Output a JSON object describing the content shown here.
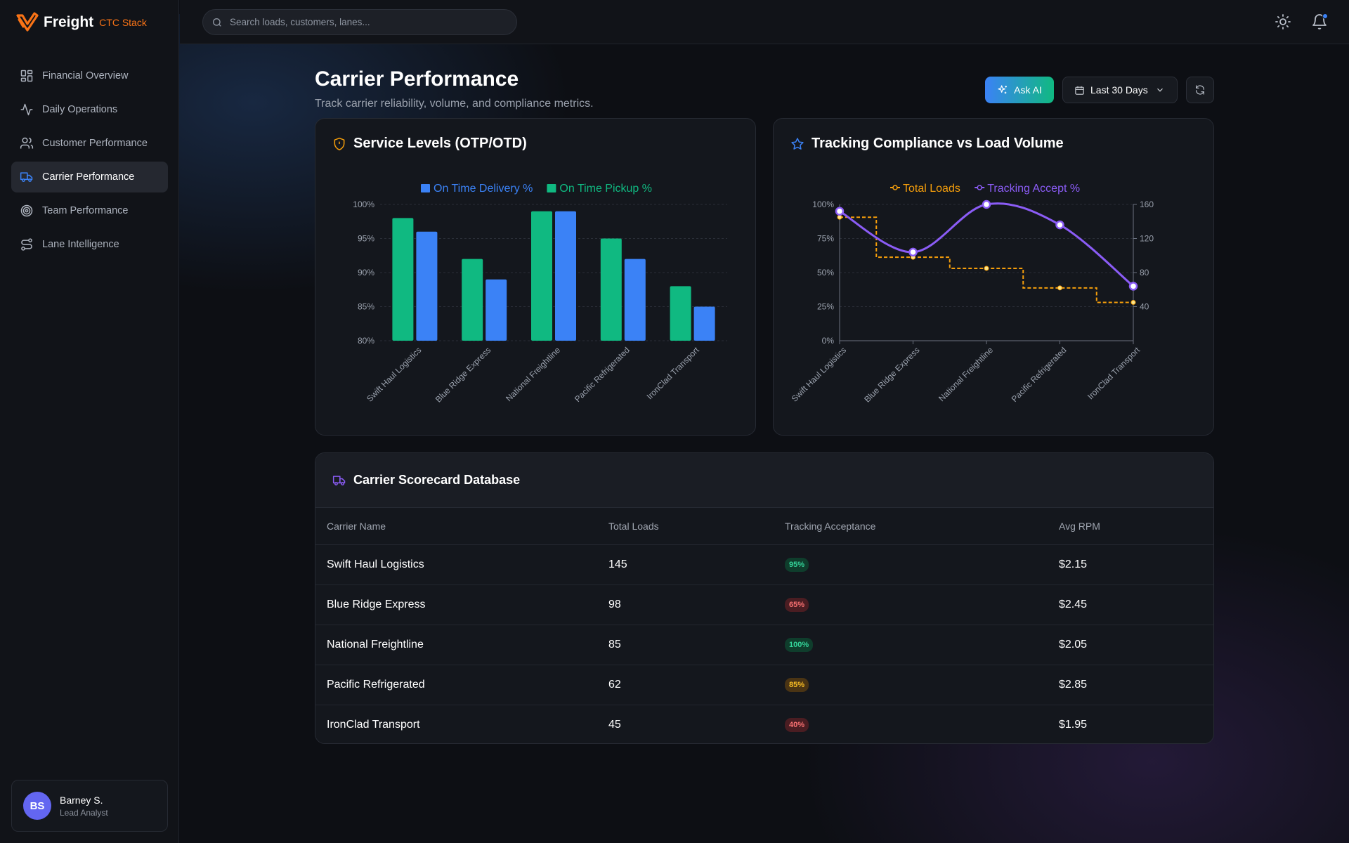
{
  "brand": {
    "name": "Freight",
    "sub": "CTC Stack"
  },
  "search": {
    "placeholder": "Search loads, customers, lanes..."
  },
  "sidebar": {
    "items": [
      {
        "label": "Financial Overview",
        "icon": "dashboard-grid-icon"
      },
      {
        "label": "Daily Operations",
        "icon": "activity-pulse-icon"
      },
      {
        "label": "Customer Performance",
        "icon": "users-icon"
      },
      {
        "label": "Carrier Performance",
        "icon": "truck-icon",
        "active": true
      },
      {
        "label": "Team Performance",
        "icon": "target-icon"
      },
      {
        "label": "Lane Intelligence",
        "icon": "route-icon"
      }
    ]
  },
  "user": {
    "initials": "BS",
    "name": "Barney S.",
    "role": "Lead Analyst"
  },
  "page": {
    "title": "Carrier Performance",
    "subtitle": "Track carrier reliability, volume, and compliance metrics.",
    "ask_ai": "Ask AI",
    "date_range": "Last 30 Days"
  },
  "service_card": {
    "title": "Service Levels (OTP/OTD)"
  },
  "tracking_card": {
    "title": "Tracking Compliance vs Load Volume"
  },
  "chart_data": [
    {
      "type": "bar",
      "title": "Service Levels (OTP/OTD)",
      "categories": [
        "Swift Haul Logistics",
        "Blue Ridge Express",
        "National Freightline",
        "Pacific Refrigerated",
        "IronClad Transport"
      ],
      "series": [
        {
          "name": "On Time Pickup %",
          "color": "#10b981",
          "values": [
            98,
            92,
            99,
            95,
            88
          ]
        },
        {
          "name": "On Time Delivery %",
          "color": "#3b82f6",
          "values": [
            96,
            89,
            99,
            92,
            85
          ]
        }
      ],
      "legend": [
        "On Time Delivery %",
        "On Time Pickup %"
      ],
      "ylim": [
        80,
        100
      ],
      "yticks": [
        "80%",
        "85%",
        "90%",
        "95%",
        "100%"
      ],
      "legend_position": "top-center"
    },
    {
      "type": "line",
      "title": "Tracking Compliance vs Load Volume",
      "categories": [
        "Swift Haul Logistics",
        "Blue Ridge Express",
        "National Freightline",
        "Pacific Refrigerated",
        "IronClad Transport"
      ],
      "series": [
        {
          "name": "Total Loads",
          "color": "#f59e0b",
          "axis": "right",
          "style": "step-dashed",
          "values": [
            145,
            98,
            85,
            62,
            45
          ]
        },
        {
          "name": "Tracking Accept %",
          "color": "#8b5cf6",
          "axis": "left",
          "style": "smooth",
          "values": [
            95,
            65,
            100,
            85,
            40
          ]
        }
      ],
      "left_ylim": [
        0,
        100
      ],
      "left_yticks": [
        "0%",
        "25%",
        "50%",
        "75%",
        "100%"
      ],
      "right_ylim": [
        0,
        160
      ],
      "right_yticks": [
        "40",
        "80",
        "120",
        "160"
      ],
      "legend_position": "top-center"
    }
  ],
  "table": {
    "title": "Carrier Scorecard Database",
    "headers": [
      "Carrier Name",
      "Total Loads",
      "Tracking Acceptance",
      "Avg RPM"
    ],
    "rows": [
      {
        "name": "Swift Haul Logistics",
        "loads": "145",
        "tracking": "95%",
        "status": "green",
        "rpm": "$2.15"
      },
      {
        "name": "Blue Ridge Express",
        "loads": "98",
        "tracking": "65%",
        "status": "red",
        "rpm": "$2.45"
      },
      {
        "name": "National Freightline",
        "loads": "85",
        "tracking": "100%",
        "status": "green",
        "rpm": "$2.05"
      },
      {
        "name": "Pacific Refrigerated",
        "loads": "62",
        "tracking": "85%",
        "status": "amber",
        "rpm": "$2.85"
      },
      {
        "name": "IronClad Transport",
        "loads": "45",
        "tracking": "40%",
        "status": "red",
        "rpm": "$1.95"
      }
    ]
  },
  "colors": {
    "accent_orange": "#f97316",
    "accent_blue": "#3b82f6",
    "accent_green": "#10b981",
    "accent_purple": "#8b5cf6",
    "accent_amber": "#f59e0b"
  }
}
